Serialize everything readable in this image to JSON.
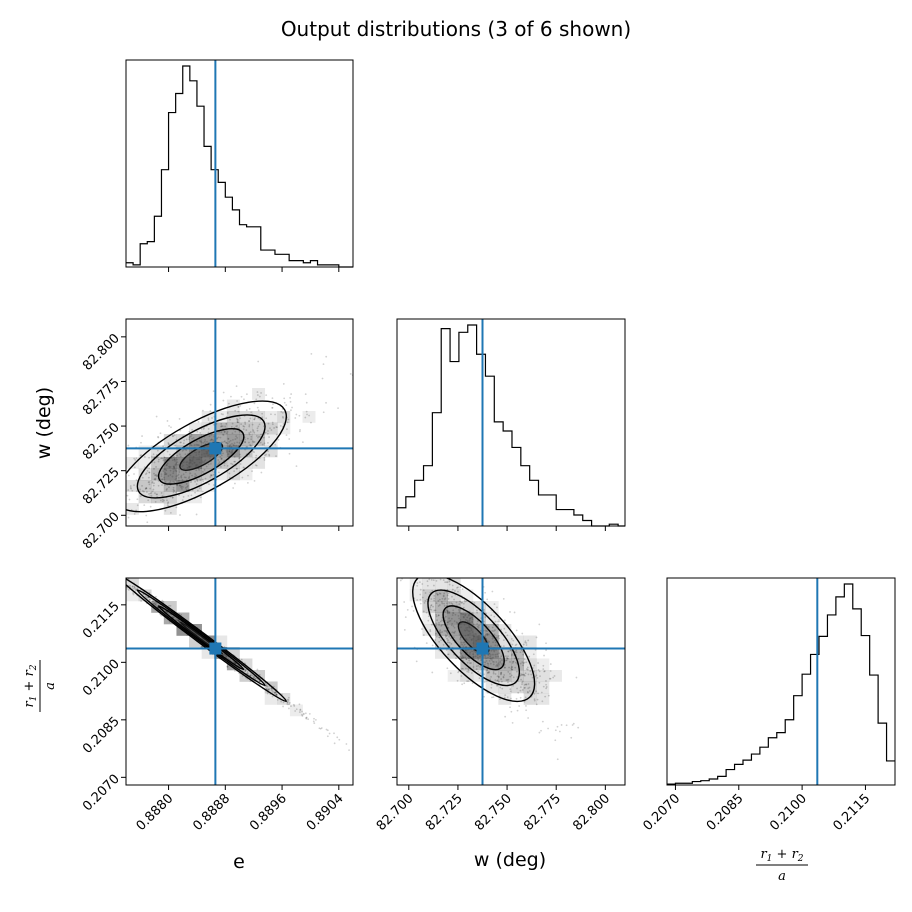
{
  "figure": {
    "title": "Output distributions (3 of 6 shown)"
  },
  "colors": {
    "truth_line": "#1f77b4",
    "histogram": "#000000",
    "contour": "#000000",
    "density_fill": "#555555"
  },
  "chart_data": [
    {
      "type": "histogram",
      "panel": "e",
      "x_param": "e",
      "xlim": [
        0.8874,
        0.8906
      ],
      "xticks": [
        "0.8880",
        "0.8888",
        "0.8896",
        "0.8904"
      ],
      "xtick_values": [
        0.888,
        0.8888,
        0.8896,
        0.8904
      ],
      "xlabel": "",
      "truth": 0.88866,
      "bin_edges": [
        0.8874,
        0.8875,
        0.8876,
        0.8877,
        0.8878,
        0.8879,
        0.888,
        0.8881,
        0.8882,
        0.8883,
        0.8884,
        0.8885,
        0.8886,
        0.8887,
        0.8888,
        0.8889,
        0.889,
        0.8891,
        0.8892,
        0.8893,
        0.8894,
        0.8895,
        0.8896,
        0.8897,
        0.8898,
        0.8899,
        0.89,
        0.8901,
        0.8902,
        0.8903,
        0.8904,
        0.8905,
        0.8906
      ],
      "counts": [
        2,
        1,
        11,
        12,
        24,
        46,
        73,
        82,
        95,
        88,
        76,
        57,
        46,
        40,
        33,
        27,
        20,
        19,
        19,
        8,
        8,
        6,
        6,
        3,
        3,
        2,
        3,
        1,
        1,
        1,
        0,
        0
      ]
    },
    {
      "type": "histogram",
      "panel": "w",
      "x_param": "w (deg)",
      "xlim": [
        82.694,
        82.81
      ],
      "xticks": [
        "82.700",
        "82.725",
        "82.750",
        "82.775",
        "82.800"
      ],
      "xtick_values": [
        82.7,
        82.725,
        82.75,
        82.775,
        82.8
      ],
      "xlabel": "w (deg)",
      "truth": 82.7375,
      "bin_edges": [
        82.694,
        82.6985,
        82.703,
        82.7075,
        82.712,
        82.7165,
        82.721,
        82.7255,
        82.73,
        82.7345,
        82.739,
        82.7435,
        82.748,
        82.7525,
        82.757,
        82.7615,
        82.766,
        82.7705,
        82.775,
        82.7795,
        82.784,
        82.7885,
        82.793,
        82.7975,
        82.802,
        82.8065,
        82.81
      ],
      "counts": [
        10,
        16,
        25,
        33,
        62,
        108,
        90,
        106,
        110,
        94,
        82,
        57,
        52,
        43,
        33,
        25,
        17,
        17,
        9,
        9,
        6,
        3,
        0,
        0,
        1,
        0
      ]
    },
    {
      "type": "histogram",
      "panel": "r_sum_over_a",
      "x_param": "(r1 + r2) / a",
      "xlim": [
        0.2068,
        0.2122
      ],
      "xticks": [
        "0.2070",
        "0.2085",
        "0.2100",
        "0.2115"
      ],
      "xtick_values": [
        0.207,
        0.2085,
        0.21,
        0.2115
      ],
      "xlabel": "",
      "truth": 0.21036,
      "bin_edges": [
        0.2068,
        0.207,
        0.2072,
        0.2074,
        0.2076,
        0.2078,
        0.208,
        0.2082,
        0.2084,
        0.2086,
        0.2088,
        0.209,
        0.2092,
        0.2094,
        0.2096,
        0.2098,
        0.21,
        0.2102,
        0.2104,
        0.2106,
        0.2108,
        0.211,
        0.2112,
        0.2114,
        0.2116,
        0.2118,
        0.212,
        0.2122
      ],
      "counts": [
        1,
        2,
        2,
        4,
        5,
        7,
        10,
        18,
        24,
        29,
        36,
        44,
        55,
        61,
        76,
        104,
        129,
        152,
        173,
        198,
        219,
        234,
        205,
        174,
        128,
        72,
        28
      ]
    },
    {
      "type": "scatter",
      "panel": "w_vs_e",
      "x_param": "e",
      "y_param": "w (deg)",
      "xlim": [
        0.8874,
        0.8906
      ],
      "ylim": [
        82.694,
        82.81
      ],
      "yticks": [
        "82.700",
        "82.725",
        "82.750",
        "82.775",
        "82.800"
      ],
      "ytick_values": [
        82.7,
        82.725,
        82.75,
        82.775,
        82.8
      ],
      "ylabel": "w (deg)",
      "truth": [
        0.88866,
        82.7375
      ],
      "center": [
        0.88846,
        82.733
      ],
      "spread": [
        0.0006,
        0.0155
      ],
      "correlation": 0.72
    },
    {
      "type": "scatter",
      "panel": "r_vs_e",
      "x_param": "e",
      "y_param": "(r1 + r2) / a",
      "xlim": [
        0.8874,
        0.8906
      ],
      "ylim": [
        0.2068,
        0.2122
      ],
      "xticks": [
        "0.8880",
        "0.8888",
        "0.8896",
        "0.8904"
      ],
      "xtick_values": [
        0.888,
        0.8888,
        0.8896,
        0.8904
      ],
      "yticks": [
        "0.2070",
        "0.2085",
        "0.2100",
        "0.2115"
      ],
      "ytick_values": [
        0.207,
        0.2085,
        0.21,
        0.2115
      ],
      "xlabel": "e",
      "ylabel": "(r1 + r2) / a",
      "truth": [
        0.88866,
        0.21036
      ],
      "center": [
        0.88846,
        0.21064
      ],
      "spread": [
        0.0006,
        0.00083
      ],
      "correlation": -0.995
    },
    {
      "type": "scatter",
      "panel": "r_vs_w",
      "x_param": "w (deg)",
      "y_param": "(r1 + r2) / a",
      "xlim": [
        82.694,
        82.81
      ],
      "ylim": [
        0.2068,
        0.2122
      ],
      "xticks": [
        "82.700",
        "82.725",
        "82.750",
        "82.775",
        "82.800"
      ],
      "xtick_values": [
        82.7,
        82.725,
        82.75,
        82.775,
        82.8
      ],
      "xlabel": "w (deg)",
      "truth": [
        82.7375,
        0.21036
      ],
      "center": [
        82.733,
        0.21064
      ],
      "spread": [
        0.0155,
        0.00083
      ],
      "correlation": -0.72
    }
  ],
  "labels": {
    "e": "e",
    "w": "w (deg)",
    "frac_num": "r",
    "frac_num_sub1": "1",
    "frac_plus": " + ",
    "frac_num_sub2": "2",
    "frac_den": "a"
  }
}
